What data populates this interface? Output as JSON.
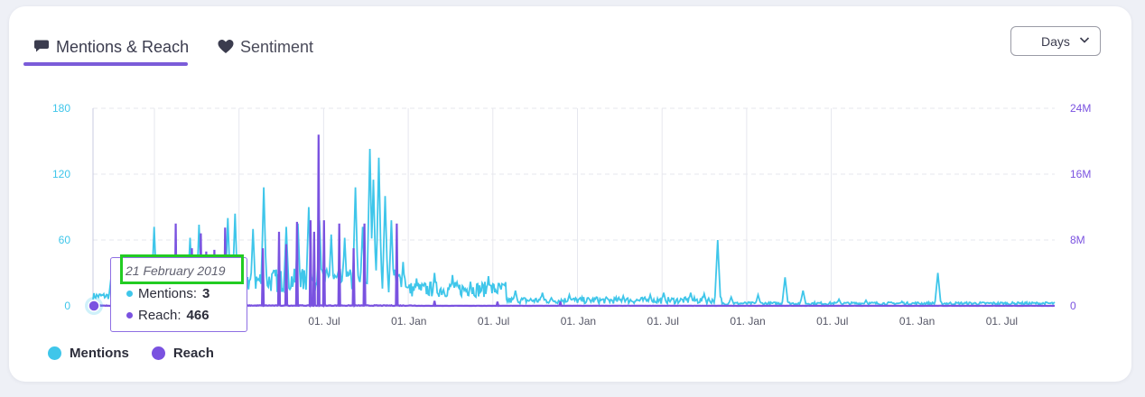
{
  "tabs": [
    {
      "label": "Mentions & Reach",
      "icon": "speech-bubble-icon",
      "active": true
    },
    {
      "label": "Sentiment",
      "icon": "heart-icon",
      "active": false
    }
  ],
  "period_select": {
    "value": "Days",
    "icon": "chevron-down-icon"
  },
  "colors": {
    "mentions": "#3fc6ea",
    "reach": "#7a52e0",
    "left_axis": "#3fc6ea",
    "right_axis": "#7a52e0",
    "grid": "#e6e7ee"
  },
  "chart_data": {
    "type": "line",
    "x_tick_labels": [
      "01. Jul",
      "01. Jan",
      "01. Jul",
      "01. Jan",
      "01. Jul",
      "01. Jan",
      "01. Jul",
      "01. Jan",
      "01. Jul"
    ],
    "y_left": {
      "ticks": [
        "180",
        "120",
        "60",
        "0"
      ],
      "range": [
        0,
        180
      ]
    },
    "y_right": {
      "ticks": [
        "24M",
        "16M",
        "8M",
        "0"
      ],
      "range": [
        0,
        24000000
      ]
    },
    "grid": true,
    "legend_position": "bottom-left",
    "series": [
      {
        "name": "Mentions",
        "axis": "left",
        "peaks": [
          {
            "i": 20,
            "v": 25
          },
          {
            "i": 68,
            "v": 72
          },
          {
            "i": 88,
            "v": 45
          },
          {
            "i": 108,
            "v": 62
          },
          {
            "i": 118,
            "v": 74
          },
          {
            "i": 150,
            "v": 80
          },
          {
            "i": 158,
            "v": 84
          },
          {
            "i": 178,
            "v": 70
          },
          {
            "i": 190,
            "v": 108
          },
          {
            "i": 215,
            "v": 72
          },
          {
            "i": 228,
            "v": 75
          },
          {
            "i": 240,
            "v": 90
          },
          {
            "i": 252,
            "v": 78
          },
          {
            "i": 265,
            "v": 65
          },
          {
            "i": 280,
            "v": 62
          },
          {
            "i": 292,
            "v": 108
          },
          {
            "i": 300,
            "v": 72
          },
          {
            "i": 308,
            "v": 143
          },
          {
            "i": 312,
            "v": 115
          },
          {
            "i": 318,
            "v": 135
          },
          {
            "i": 325,
            "v": 100
          },
          {
            "i": 332,
            "v": 78
          },
          {
            "i": 345,
            "v": 40
          },
          {
            "i": 360,
            "v": 25
          },
          {
            "i": 380,
            "v": 30
          },
          {
            "i": 400,
            "v": 28
          },
          {
            "i": 420,
            "v": 22
          },
          {
            "i": 440,
            "v": 27
          },
          {
            "i": 470,
            "v": 14
          },
          {
            "i": 500,
            "v": 12
          },
          {
            "i": 530,
            "v": 10
          },
          {
            "i": 560,
            "v": 8
          },
          {
            "i": 590,
            "v": 9
          },
          {
            "i": 620,
            "v": 10
          },
          {
            "i": 635,
            "v": 12
          },
          {
            "i": 665,
            "v": 12
          },
          {
            "i": 680,
            "v": 11
          },
          {
            "i": 695,
            "v": 60
          },
          {
            "i": 710,
            "v": 8
          },
          {
            "i": 740,
            "v": 10
          },
          {
            "i": 770,
            "v": 26
          },
          {
            "i": 790,
            "v": 14
          },
          {
            "i": 830,
            "v": 6
          },
          {
            "i": 860,
            "v": 5
          },
          {
            "i": 900,
            "v": 4
          },
          {
            "i": 940,
            "v": 30
          },
          {
            "i": 990,
            "v": 3
          },
          {
            "i": 1030,
            "v": 3
          },
          {
            "i": 1060,
            "v": 2
          }
        ]
      },
      {
        "name": "Reach",
        "axis": "right",
        "spikes": [
          {
            "i": 30,
            "v": 1500000
          },
          {
            "i": 60,
            "v": 2000000
          },
          {
            "i": 92,
            "v": 10000000
          },
          {
            "i": 110,
            "v": 7000000
          },
          {
            "i": 120,
            "v": 8800000
          },
          {
            "i": 126,
            "v": 6600000
          },
          {
            "i": 135,
            "v": 6800000
          },
          {
            "i": 147,
            "v": 9500000
          },
          {
            "i": 160,
            "v": 6000000
          },
          {
            "i": 189,
            "v": 7000000
          },
          {
            "i": 207,
            "v": 9000000
          },
          {
            "i": 215,
            "v": 7500000
          },
          {
            "i": 227,
            "v": 10200000
          },
          {
            "i": 242,
            "v": 10400000
          },
          {
            "i": 246,
            "v": 9000000
          },
          {
            "i": 251,
            "v": 20800000
          },
          {
            "i": 257,
            "v": 10400000
          },
          {
            "i": 274,
            "v": 10000000
          },
          {
            "i": 290,
            "v": 7000000
          },
          {
            "i": 302,
            "v": 10000000
          },
          {
            "i": 338,
            "v": 10000000
          },
          {
            "i": 380,
            "v": 600000
          },
          {
            "i": 450,
            "v": 500000
          },
          {
            "i": 520,
            "v": 500000
          }
        ]
      }
    ],
    "tooltip": {
      "date": "21 February 2019",
      "rows": [
        {
          "label": "Mentions",
          "value": "3"
        },
        {
          "label": "Reach",
          "value": "466"
        }
      ]
    }
  },
  "legend": [
    {
      "label": "Mentions",
      "color": "#3fc6ea"
    },
    {
      "label": "Reach",
      "color": "#7a52e0"
    }
  ]
}
